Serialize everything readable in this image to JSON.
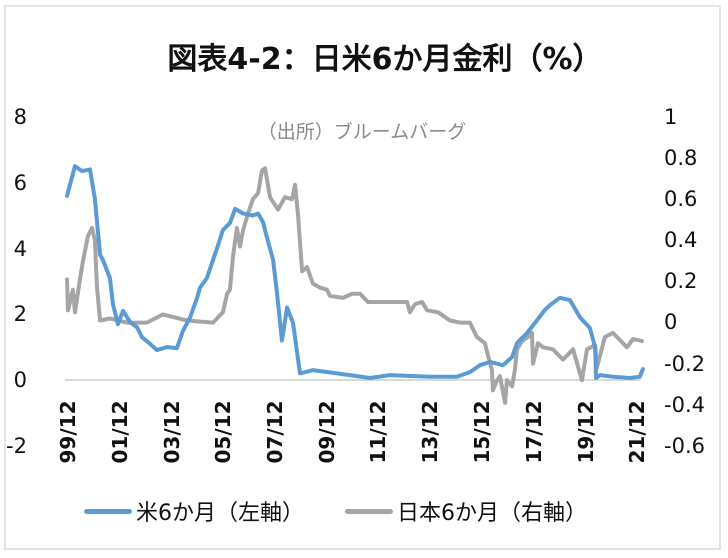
{
  "chart_data": {
    "type": "line",
    "title": "図表4-2：日米6か月金利（%）",
    "source_note": "（出所）ブルームバーグ",
    "xlabel": "",
    "ylabel_left": "",
    "ylabel_right": "",
    "grid": false,
    "legend_position": "bottom",
    "x_tick_labels": [
      "99/12",
      "01/12",
      "03/12",
      "05/12",
      "07/12",
      "09/12",
      "11/12",
      "13/12",
      "15/12",
      "17/12",
      "19/12",
      "21/12"
    ],
    "x_range": [
      1999.92,
      2022.2
    ],
    "y_left": {
      "range": [
        -2,
        8
      ],
      "tick_labels": [
        "8",
        "6",
        "4",
        "2",
        "0",
        "-2"
      ]
    },
    "y_right": {
      "range": [
        -0.6,
        1
      ],
      "tick_labels": [
        "1",
        "0.8",
        "0.6",
        "0.4",
        "0.2",
        "0",
        "-0.2",
        "-0.4",
        "-0.6"
      ]
    },
    "series": [
      {
        "name": "米6か月（左軸）",
        "axis": "left",
        "color": "#5b9bd5",
        "points": [
          [
            1999.92,
            5.6
          ],
          [
            2000.23,
            6.5
          ],
          [
            2000.5,
            6.35
          ],
          [
            2000.81,
            6.4
          ],
          [
            2001.0,
            5.5
          ],
          [
            2001.2,
            3.8
          ],
          [
            2001.31,
            3.65
          ],
          [
            2001.58,
            3.1
          ],
          [
            2001.7,
            2.3
          ],
          [
            2001.89,
            1.7
          ],
          [
            2002.09,
            2.1
          ],
          [
            2002.36,
            1.76
          ],
          [
            2002.63,
            1.6
          ],
          [
            2002.82,
            1.3
          ],
          [
            2003.13,
            1.1
          ],
          [
            2003.4,
            0.91
          ],
          [
            2003.79,
            1.0
          ],
          [
            2004.17,
            0.97
          ],
          [
            2004.41,
            1.5
          ],
          [
            2004.68,
            1.9
          ],
          [
            2004.95,
            2.5
          ],
          [
            2005.06,
            2.8
          ],
          [
            2005.33,
            3.1
          ],
          [
            2005.72,
            4.0
          ],
          [
            2005.95,
            4.56
          ],
          [
            2006.22,
            4.77
          ],
          [
            2006.42,
            5.2
          ],
          [
            2006.73,
            5.06
          ],
          [
            2007.11,
            5.0
          ],
          [
            2007.31,
            5.06
          ],
          [
            2007.5,
            4.8
          ],
          [
            2007.65,
            4.34
          ],
          [
            2007.89,
            3.65
          ],
          [
            2008.04,
            2.64
          ],
          [
            2008.23,
            1.2
          ],
          [
            2008.43,
            2.2
          ],
          [
            2008.66,
            1.74
          ],
          [
            2008.93,
            0.2
          ],
          [
            2009.43,
            0.3
          ],
          [
            2010.36,
            0.2
          ],
          [
            2011.64,
            0.06
          ],
          [
            2012.41,
            0.15
          ],
          [
            2013.96,
            0.1
          ],
          [
            2015.0,
            0.1
          ],
          [
            2015.5,
            0.24
          ],
          [
            2015.89,
            0.45
          ],
          [
            2016.28,
            0.55
          ],
          [
            2016.78,
            0.45
          ],
          [
            2017.13,
            0.7
          ],
          [
            2017.32,
            1.12
          ],
          [
            2017.71,
            1.43
          ],
          [
            2018.1,
            1.82
          ],
          [
            2018.4,
            2.13
          ],
          [
            2018.6,
            2.28
          ],
          [
            2018.98,
            2.5
          ],
          [
            2019.37,
            2.43
          ],
          [
            2019.76,
            1.9
          ],
          [
            2020.14,
            1.58
          ],
          [
            2020.34,
            1.0
          ],
          [
            2020.38,
            0.06
          ],
          [
            2020.53,
            0.15
          ],
          [
            2021.03,
            0.1
          ],
          [
            2021.69,
            0.06
          ],
          [
            2022.07,
            0.1
          ],
          [
            2022.19,
            0.33
          ]
        ]
      },
      {
        "name": "日本6か月（右軸）",
        "axis": "right",
        "color": "#a5a5a5",
        "points": [
          [
            1999.92,
            0.21
          ],
          [
            1999.96,
            0.06
          ],
          [
            2000.15,
            0.16
          ],
          [
            2000.23,
            0.05
          ],
          [
            2000.42,
            0.21
          ],
          [
            2000.54,
            0.3
          ],
          [
            2000.73,
            0.42
          ],
          [
            2000.89,
            0.46
          ],
          [
            2001.0,
            0.4
          ],
          [
            2001.08,
            0.17
          ],
          [
            2001.2,
            0.01
          ],
          [
            2001.58,
            0.02
          ],
          [
            2002.24,
            0.0
          ],
          [
            2003.01,
            0.0
          ],
          [
            2003.63,
            0.04
          ],
          [
            2004.56,
            0.01
          ],
          [
            2005.57,
            0.0
          ],
          [
            2005.95,
            0.05
          ],
          [
            2006.11,
            0.14
          ],
          [
            2006.22,
            0.16
          ],
          [
            2006.34,
            0.32
          ],
          [
            2006.49,
            0.46
          ],
          [
            2006.61,
            0.37
          ],
          [
            2006.73,
            0.45
          ],
          [
            2006.92,
            0.53
          ],
          [
            2007.11,
            0.6
          ],
          [
            2007.31,
            0.63
          ],
          [
            2007.46,
            0.74
          ],
          [
            2007.58,
            0.75
          ],
          [
            2007.77,
            0.61
          ],
          [
            2008.08,
            0.55
          ],
          [
            2008.35,
            0.61
          ],
          [
            2008.62,
            0.6
          ],
          [
            2008.74,
            0.67
          ],
          [
            2008.85,
            0.53
          ],
          [
            2009.01,
            0.25
          ],
          [
            2009.2,
            0.27
          ],
          [
            2009.43,
            0.19
          ],
          [
            2009.7,
            0.17
          ],
          [
            2009.97,
            0.16
          ],
          [
            2010.09,
            0.13
          ],
          [
            2010.59,
            0.12
          ],
          [
            2010.94,
            0.14
          ],
          [
            2011.25,
            0.14
          ],
          [
            2011.56,
            0.1
          ],
          [
            2013.07,
            0.1
          ],
          [
            2013.18,
            0.05
          ],
          [
            2013.38,
            0.09
          ],
          [
            2013.65,
            0.1
          ],
          [
            2013.84,
            0.06
          ],
          [
            2014.27,
            0.05
          ],
          [
            2014.73,
            0.01
          ],
          [
            2015.12,
            0.0
          ],
          [
            2015.5,
            0.0
          ],
          [
            2015.77,
            -0.07
          ],
          [
            2016.08,
            -0.1
          ],
          [
            2016.2,
            -0.16
          ],
          [
            2016.35,
            -0.23
          ],
          [
            2016.39,
            -0.33
          ],
          [
            2016.55,
            -0.28
          ],
          [
            2016.66,
            -0.26
          ],
          [
            2016.86,
            -0.39
          ],
          [
            2016.93,
            -0.28
          ],
          [
            2017.13,
            -0.31
          ],
          [
            2017.24,
            -0.23
          ],
          [
            2017.32,
            -0.13
          ],
          [
            2017.51,
            -0.09
          ],
          [
            2017.75,
            -0.07
          ],
          [
            2017.9,
            -0.05
          ],
          [
            2017.94,
            -0.2
          ],
          [
            2018.13,
            -0.1
          ],
          [
            2018.33,
            -0.12
          ],
          [
            2018.71,
            -0.13
          ],
          [
            2019.1,
            -0.18
          ],
          [
            2019.49,
            -0.13
          ],
          [
            2019.83,
            -0.28
          ],
          [
            2020.03,
            -0.13
          ],
          [
            2020.34,
            -0.11
          ],
          [
            2020.41,
            -0.22
          ],
          [
            2020.72,
            -0.07
          ],
          [
            2021.03,
            -0.05
          ],
          [
            2021.57,
            -0.12
          ],
          [
            2021.81,
            -0.08
          ],
          [
            2022.15,
            -0.09
          ]
        ]
      }
    ]
  },
  "legend": {
    "items": [
      {
        "label": "米6か月（左軸）",
        "color": "#5b9bd5"
      },
      {
        "label": "日本6か月（右軸）",
        "color": "#a5a5a5"
      }
    ]
  }
}
